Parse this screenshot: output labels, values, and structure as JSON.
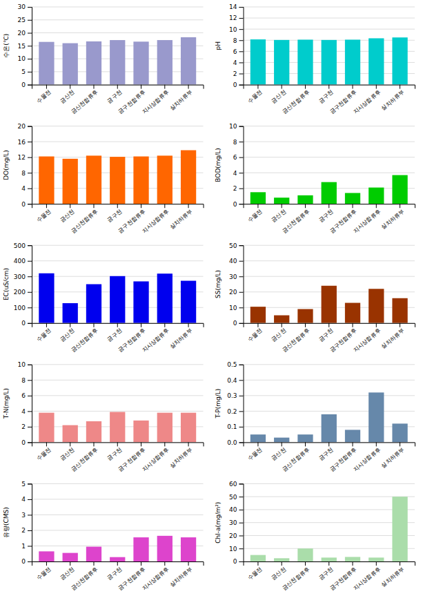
{
  "chart_data": [
    {
      "type": "bar",
      "ylabel": "수온(℃)",
      "categories": [
        "수물전",
        "금산천",
        "금산천합류후",
        "금구천",
        "금구천합류후",
        "지시상합류후",
        "실치하류부"
      ],
      "values": [
        16.5,
        16.0,
        16.7,
        17.2,
        16.6,
        17.2,
        18.3
      ],
      "color": "#9999cc",
      "ylim": [
        0,
        30
      ],
      "yticks": [
        0,
        5,
        10,
        15,
        20,
        25,
        30
      ],
      "grid": true
    },
    {
      "type": "bar",
      "ylabel": "pH",
      "categories": [
        "수물전",
        "금산천",
        "금산천합류후",
        "금구천",
        "금구천합류후",
        "지시상합류후",
        "실치하류부"
      ],
      "values": [
        8.15,
        8.05,
        8.1,
        8.05,
        8.1,
        8.35,
        8.5
      ],
      "color": "#00cccc",
      "ylim": [
        0,
        14
      ],
      "yticks": [
        0,
        2,
        4,
        6,
        8,
        10,
        12,
        14
      ],
      "grid": true
    },
    {
      "type": "bar",
      "ylabel": "DO(mg/L)",
      "categories": [
        "수물전",
        "금산천",
        "금산천합류후",
        "금구천",
        "금구천합류후",
        "지시상합류후",
        "실치하류부"
      ],
      "values": [
        12.2,
        11.6,
        12.4,
        12.1,
        12.2,
        12.4,
        13.8
      ],
      "color": "#ff6600",
      "ylim": [
        0,
        20
      ],
      "yticks": [
        0,
        4,
        8,
        12,
        16,
        20
      ],
      "grid": true
    },
    {
      "type": "bar",
      "ylabel": "BOD(mg/L)",
      "categories": [
        "수물전",
        "금산천",
        "금산천합류후",
        "금구천",
        "금구천합류후",
        "지시상합류후",
        "실치하류부"
      ],
      "values": [
        1.5,
        0.8,
        1.1,
        2.8,
        1.4,
        2.1,
        3.7
      ],
      "color": "#00cc00",
      "ylim": [
        0,
        10
      ],
      "yticks": [
        0,
        2,
        4,
        6,
        8,
        10
      ],
      "grid": true
    },
    {
      "type": "bar",
      "ylabel": "EC(uS/cm)",
      "categories": [
        "수물전",
        "금산천",
        "금산천합류후",
        "금구천",
        "금구천합류후",
        "지시상합류후",
        "실치하류부"
      ],
      "values": [
        320,
        128,
        250,
        302,
        268,
        318,
        272
      ],
      "color": "#0000ee",
      "ylim": [
        0,
        500
      ],
      "yticks": [
        0,
        100,
        200,
        300,
        400,
        500
      ],
      "grid": true
    },
    {
      "type": "bar",
      "ylabel": "SS(mg/L)",
      "categories": [
        "수물전",
        "금산천",
        "금산천합류후",
        "금구천",
        "금구천합류후",
        "지시상합류후",
        "실치하류부"
      ],
      "values": [
        10.5,
        5.0,
        9.0,
        24.0,
        13.0,
        22.0,
        16.0
      ],
      "color": "#993300",
      "ylim": [
        0,
        50
      ],
      "yticks": [
        0,
        10,
        20,
        30,
        40,
        50
      ],
      "grid": true
    },
    {
      "type": "bar",
      "ylabel": "T-N(mg/L)",
      "categories": [
        "수물전",
        "금산천",
        "금산천합류후",
        "금구천",
        "금구천합류후",
        "지시상합류후",
        "실치하류부"
      ],
      "values": [
        3.8,
        2.2,
        2.7,
        3.9,
        2.8,
        3.8,
        3.8
      ],
      "color": "#ee8888",
      "ylim": [
        0,
        10
      ],
      "yticks": [
        0,
        2,
        4,
        6,
        8,
        10
      ],
      "grid": true
    },
    {
      "type": "bar",
      "ylabel": "T-P(mg/L)",
      "categories": [
        "수물전",
        "금산천",
        "금산천합류후",
        "금구천",
        "금구천합류후",
        "지시상합류후",
        "실치하류부"
      ],
      "values": [
        0.05,
        0.03,
        0.05,
        0.18,
        0.08,
        0.32,
        0.12
      ],
      "color": "#6688aa",
      "ylim": [
        0,
        0.5
      ],
      "yticks": [
        {
          "value": 0,
          "label": "0.0"
        },
        0.1,
        0.2,
        0.3,
        0.4,
        0.5
      ],
      "grid": true
    },
    {
      "type": "bar",
      "ylabel": "유량(CMS)",
      "categories": [
        "수물전",
        "금산천",
        "금산천합류후",
        "금구천",
        "금구천합류후",
        "지시상합류후",
        "실치하류부"
      ],
      "values": [
        0.65,
        0.55,
        0.95,
        0.28,
        1.55,
        1.65,
        1.55
      ],
      "color": "#dd44cc",
      "ylim": [
        0,
        5
      ],
      "yticks": [
        0,
        1,
        2,
        3,
        4,
        5
      ],
      "grid": true
    },
    {
      "type": "bar",
      "ylabel": "Chl-a(mg/m²)",
      "categories": [
        "수물전",
        "금산천",
        "금산천합류후",
        "금구천",
        "금구천합류후",
        "지시상합류후",
        "실치하류부"
      ],
      "values": [
        5.0,
        2.5,
        10.0,
        3.0,
        3.5,
        3.0,
        50.0
      ],
      "color": "#aaddaa",
      "ylim": [
        0,
        60
      ],
      "yticks": [
        0,
        10,
        20,
        30,
        40,
        50,
        60
      ],
      "grid": true
    }
  ]
}
